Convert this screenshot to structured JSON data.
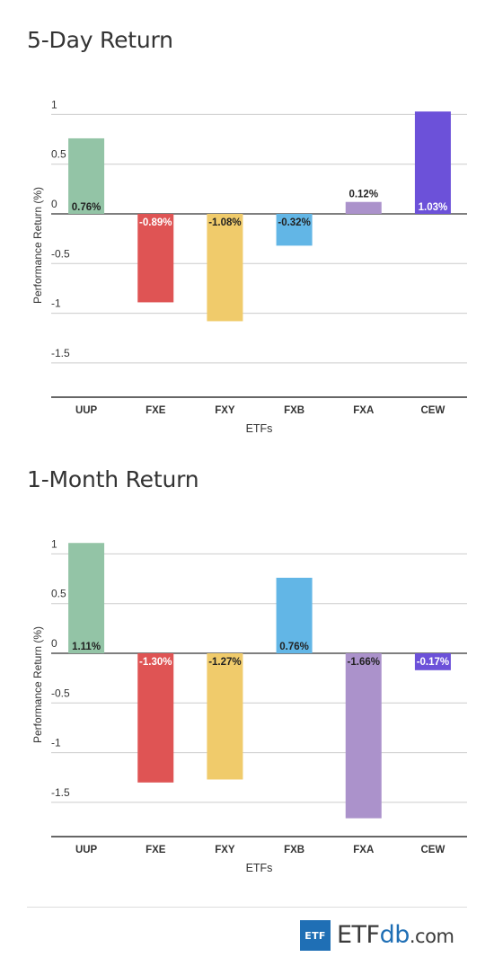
{
  "chart_data": [
    {
      "type": "bar",
      "title": "5-Day Return",
      "xlabel": "ETFs",
      "ylabel": "Performance Return (%)",
      "categories": [
        "UUP",
        "FXE",
        "FXY",
        "FXB",
        "FXA",
        "CEW"
      ],
      "values": [
        0.76,
        -0.89,
        -1.08,
        -0.32,
        0.12,
        1.03
      ],
      "data_labels": [
        "0.76%",
        "-0.89%",
        "-1.08%",
        "-0.32%",
        "0.12%",
        "1.03%"
      ],
      "colors": [
        "#93c4a6",
        "#df5454",
        "#f0cb6b",
        "#62b6e6",
        "#ab92cb",
        "#6c51d9"
      ],
      "ylim": [
        -1.9,
        1.1
      ],
      "yticks": [
        1,
        0.5,
        0,
        -0.5,
        -1,
        -1.5
      ],
      "ytick_labels": [
        "1",
        "0.5",
        "0",
        "-0.5",
        "-1",
        "-1.5"
      ],
      "grid": true,
      "legend": "none"
    },
    {
      "type": "bar",
      "title": "1-Month Return",
      "xlabel": "ETFs",
      "ylabel": "Performance Return (%)",
      "categories": [
        "UUP",
        "FXE",
        "FXY",
        "FXB",
        "FXA",
        "CEW"
      ],
      "values": [
        1.11,
        -1.3,
        -1.27,
        0.76,
        -1.66,
        -0.17
      ],
      "data_labels": [
        "1.11%",
        "-1.30%",
        "-1.27%",
        "0.76%",
        "-1.66%",
        "-0.17%"
      ],
      "colors": [
        "#93c4a6",
        "#df5454",
        "#f0cb6b",
        "#62b6e6",
        "#ab92cb",
        "#6c51d9"
      ],
      "ylim": [
        -1.9,
        1.1
      ],
      "yticks": [
        1,
        0.5,
        0,
        -0.5,
        -1,
        -1.5
      ],
      "ytick_labels": [
        "1",
        "0.5",
        "0",
        "-0.5",
        "-1",
        "-1.5"
      ],
      "grid": true,
      "legend": "none"
    }
  ],
  "footer": {
    "logo_box": "ETF",
    "logo_main": "ETF",
    "logo_accent": "db",
    "logo_suffix": ".com"
  }
}
